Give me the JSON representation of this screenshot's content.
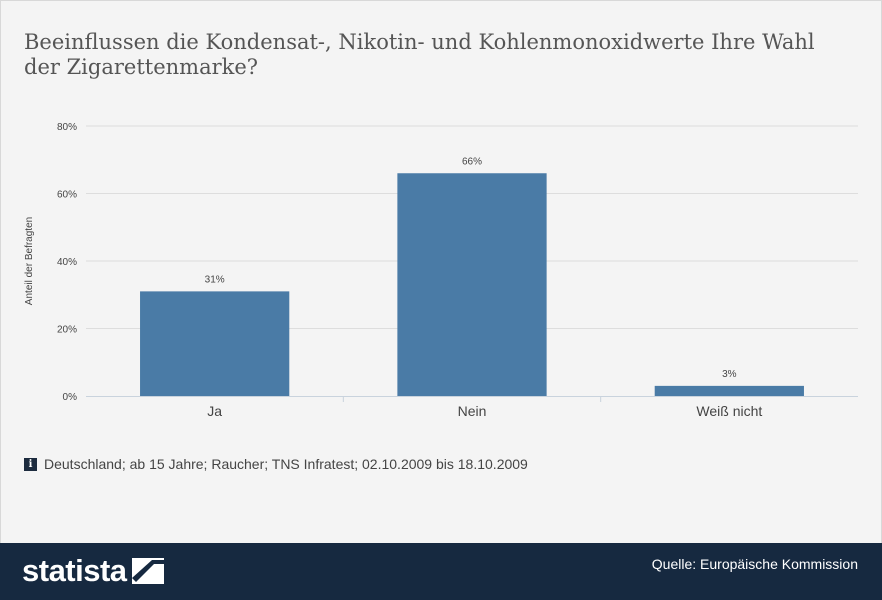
{
  "title": "Beeinflussen die Kondensat-, Nikotin- und Kohlenmonoxidwerte Ihre Wahl der Zigarettenmarke?",
  "info_icon": "i",
  "note": "Deutschland; ab 15 Jahre; Raucher; TNS Infratest; 02.10.2009 bis 18.10.2009",
  "footer": {
    "brand": "statista",
    "source": "Quelle: Europäische Kommission"
  },
  "colors": {
    "bar": "#4a7ba6",
    "footer": "#162940",
    "grid": "#dddddd"
  },
  "chart_data": {
    "type": "bar",
    "categories": [
      "Ja",
      "Nein",
      "Weiß nicht"
    ],
    "values": [
      31,
      66,
      3
    ],
    "value_labels": [
      "31%",
      "66%",
      "3%"
    ],
    "ylabel": "Anteil der Befragten",
    "ylim": [
      0,
      80
    ],
    "yticks": [
      0,
      20,
      40,
      60,
      80
    ],
    "ytick_labels": [
      "0%",
      "20%",
      "40%",
      "60%",
      "80%"
    ],
    "grid": true
  }
}
